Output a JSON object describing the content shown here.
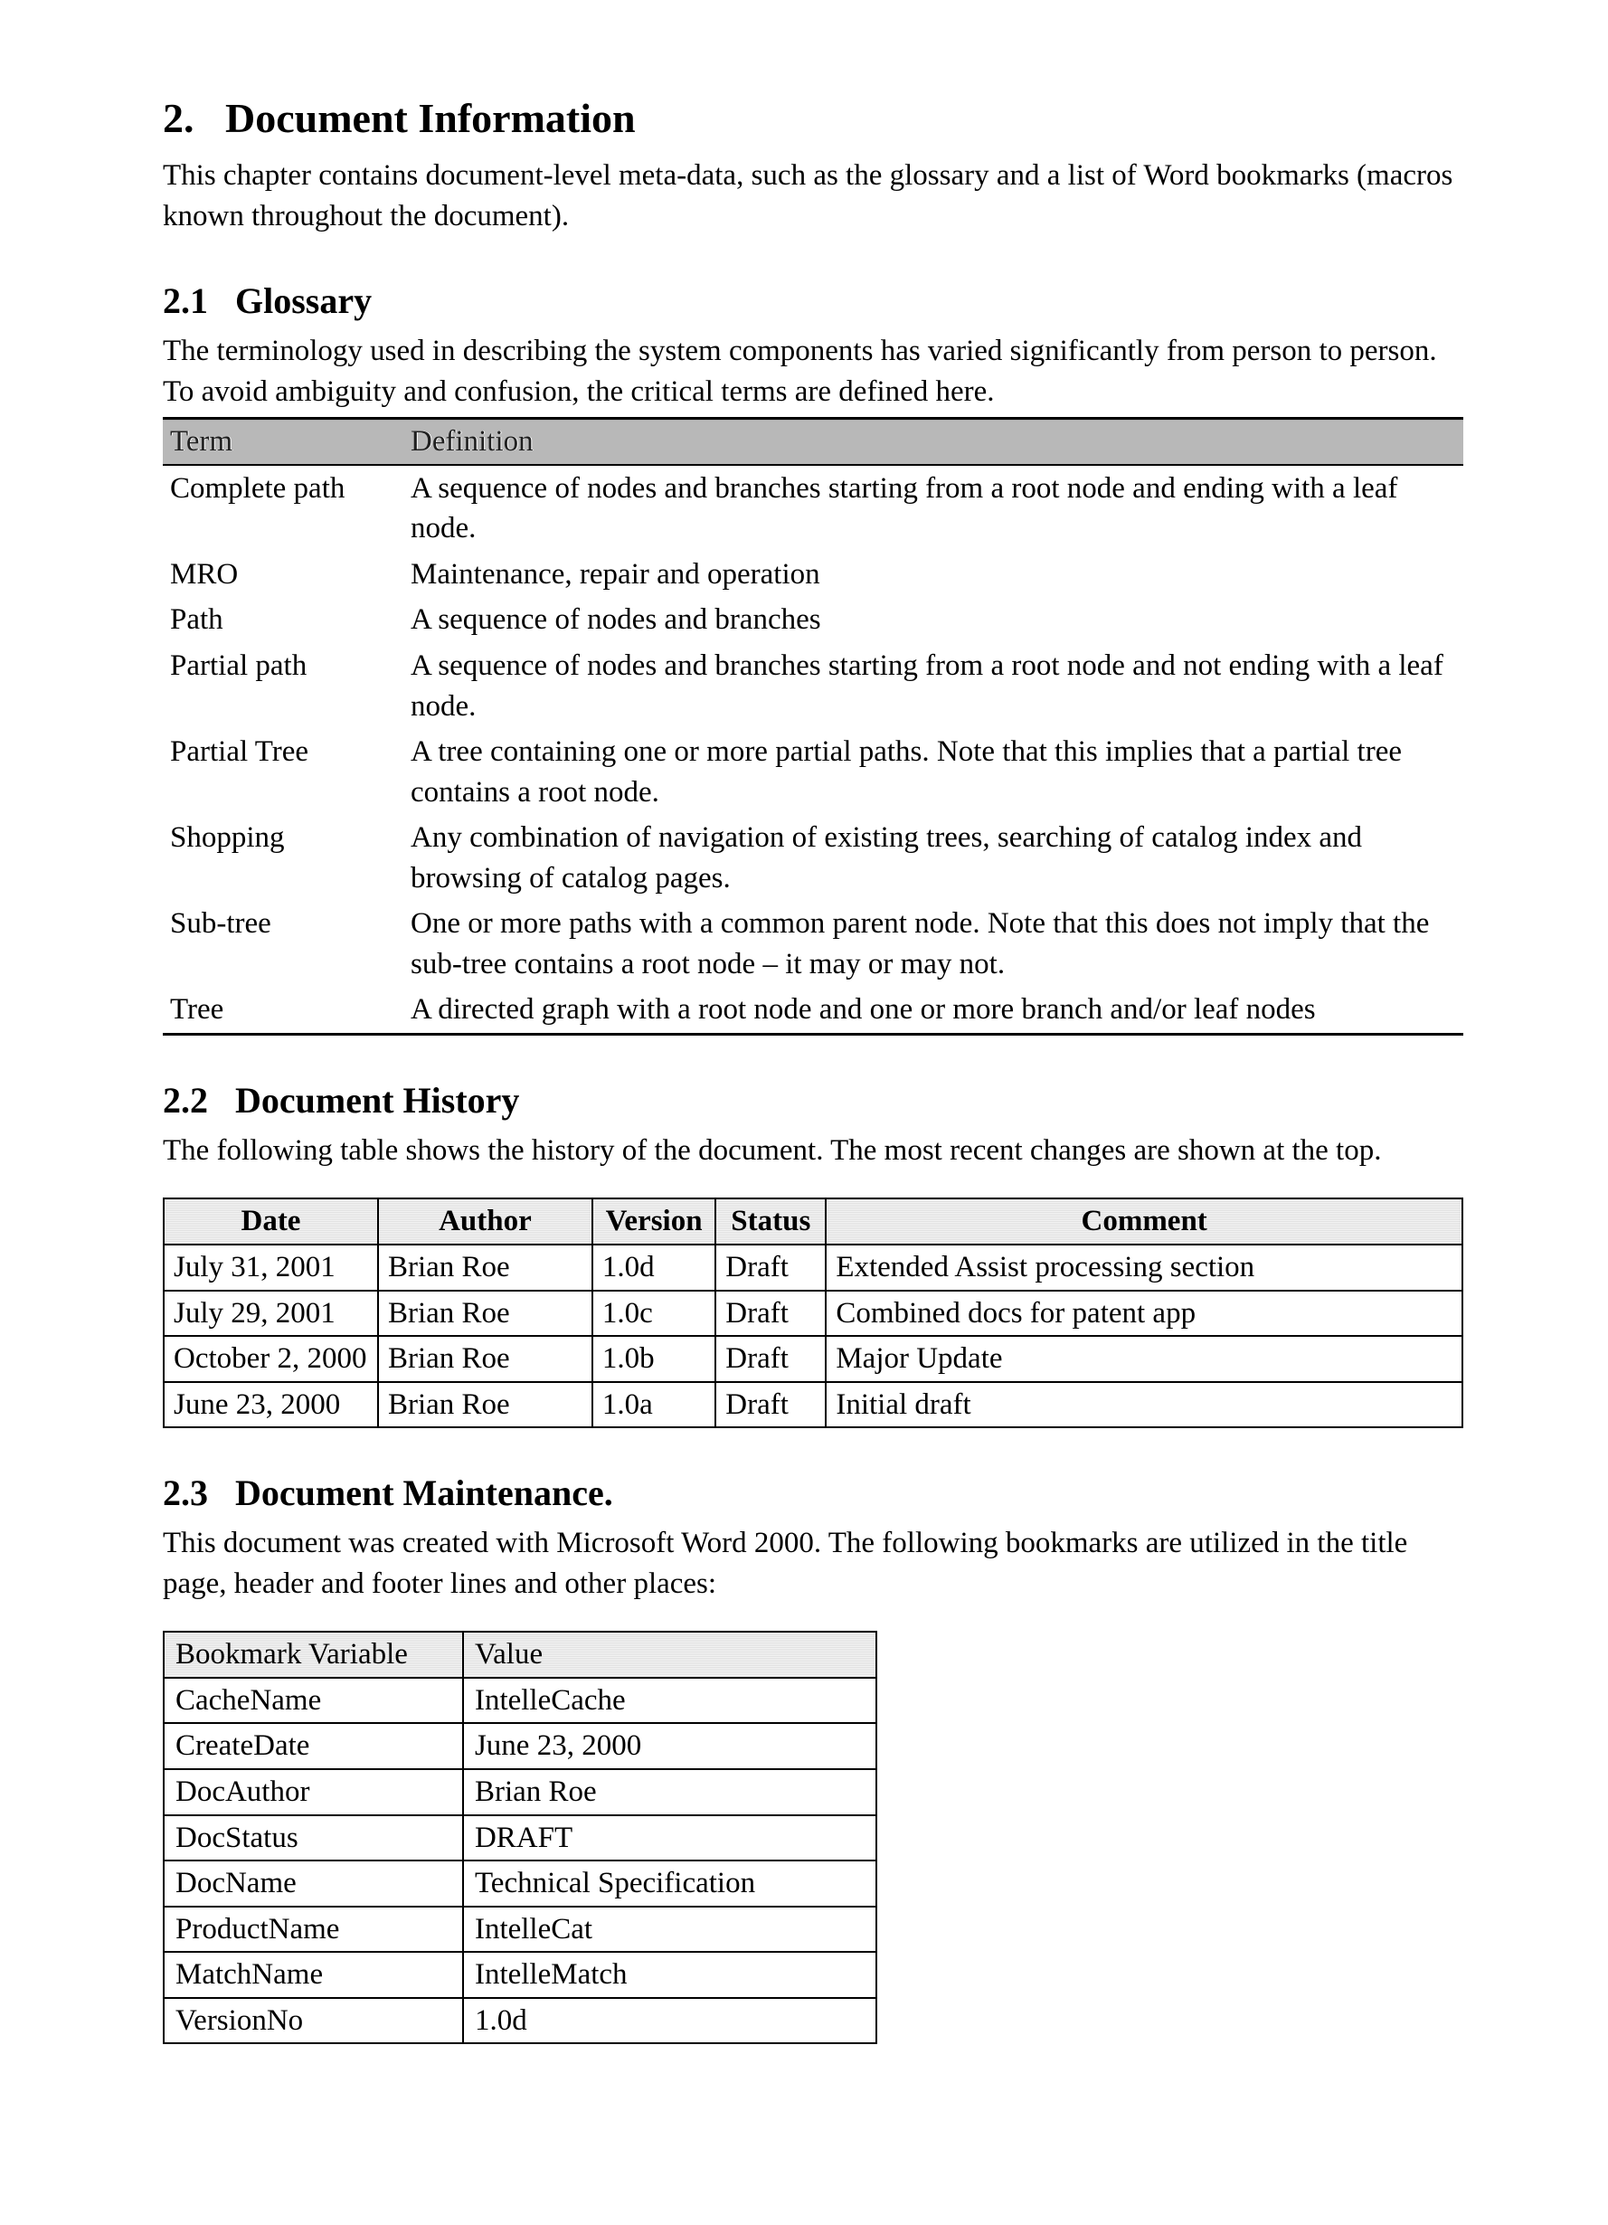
{
  "section": {
    "number": "2.",
    "title": "Document Information",
    "intro": "This chapter contains document-level meta-data, such as the glossary and a list of Word bookmarks (macros known throughout the document)."
  },
  "glossary": {
    "number": "2.1",
    "title": "Glossary",
    "intro": "The terminology used in describing the system components has varied significantly from person to person.  To avoid ambiguity and confusion, the critical terms are defined here.",
    "columns": [
      "Term",
      "Definition"
    ],
    "rows": [
      {
        "term": "Complete path",
        "def": "A sequence of nodes and branches starting from a root node and ending with a leaf node."
      },
      {
        "term": "MRO",
        "def": "Maintenance, repair and operation"
      },
      {
        "term": "Path",
        "def": "A sequence of nodes and branches"
      },
      {
        "term": "Partial path",
        "def": "A sequence of nodes and branches starting from a root node and not ending with a leaf node."
      },
      {
        "term": "Partial Tree",
        "def": "A tree containing one or more partial paths.  Note that this implies that a partial tree contains a root node."
      },
      {
        "term": "Shopping",
        "def": "Any combination of navigation of existing trees, searching of catalog index and browsing of catalog pages."
      },
      {
        "term": "Sub-tree",
        "def": "One or more paths with a common parent node.  Note that this does not imply that the sub-tree contains a root node – it may or may not."
      },
      {
        "term": "Tree",
        "def": "A directed graph with a root node and one or more branch and/or leaf nodes"
      }
    ]
  },
  "history": {
    "number": "2.2",
    "title": "Document History",
    "intro": "The following table shows the history of the document.  The most recent changes are shown at the top.",
    "columns": [
      "Date",
      "Author",
      "Version",
      "Status",
      "Comment"
    ],
    "rows": [
      [
        "July 31, 2001",
        "Brian Roe",
        "1.0d",
        "Draft",
        "Extended Assist processing section"
      ],
      [
        "July 29, 2001",
        "Brian Roe",
        "1.0c",
        "Draft",
        "Combined docs for patent app"
      ],
      [
        "October 2, 2000",
        "Brian Roe",
        "1.0b",
        "Draft",
        "Major Update"
      ],
      [
        "June 23, 2000",
        "Brian Roe",
        "1.0a",
        "Draft",
        "Initial draft"
      ]
    ]
  },
  "maintenance": {
    "number": "2.3",
    "title": "Document Maintenance.",
    "intro": "This document was created with Microsoft Word 2000. The following bookmarks are utilized in the title page, header and footer lines and other places:",
    "columns": [
      "Bookmark Variable",
      "Value"
    ],
    "rows": [
      [
        "CacheName",
        "IntelleCache"
      ],
      [
        "CreateDate",
        "June 23, 2000"
      ],
      [
        "DocAuthor",
        "Brian Roe"
      ],
      [
        "DocStatus",
        "DRAFT"
      ],
      [
        "DocName",
        "Technical Specification"
      ],
      [
        "ProductName",
        "IntelleCat"
      ],
      [
        "MatchName",
        "IntelleMatch"
      ],
      [
        "VersionNo",
        "1.0d"
      ]
    ]
  }
}
